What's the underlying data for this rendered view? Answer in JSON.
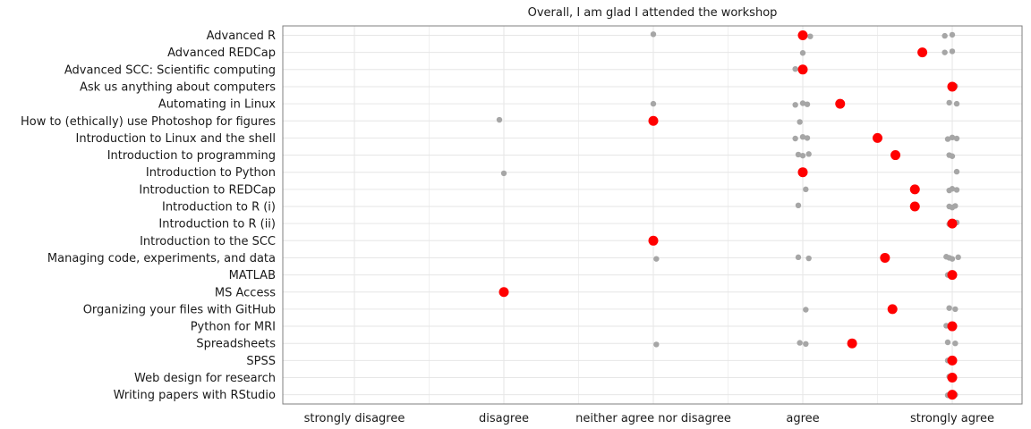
{
  "chart_data": {
    "type": "scatter",
    "title": "Overall, I am glad I attended the workshop",
    "x_categories": [
      "strongly disagree",
      "disagree",
      "neither agree nor disagree",
      "agree",
      "strongly agree"
    ],
    "x_scale": {
      "1": "strongly disagree",
      "2": "disagree",
      "3": "neither agree nor disagree",
      "4": "agree",
      "5": "strongly agree"
    },
    "grid": true,
    "colors": {
      "individual": "#a6a6a6",
      "mean": "#ff0000",
      "grid": "#e6e6e6",
      "border": "#7f7f7f"
    },
    "series_roles": [
      "individual responses (grey)",
      "mean response (red)"
    ],
    "rows": [
      {
        "label": "Advanced R",
        "mean": 4.0,
        "responses": [
          3.0,
          4.0,
          4.05,
          5.0,
          4.95
        ]
      },
      {
        "label": "Advanced REDCap",
        "mean": 4.8,
        "responses": [
          4.0,
          5.0,
          4.95
        ]
      },
      {
        "label": "Advanced SCC: Scientific computing",
        "mean": 4.0,
        "responses": [
          3.95,
          4.0
        ]
      },
      {
        "label": "Ask us anything about computers",
        "mean": 5.0,
        "responses": [
          5.0,
          5.02
        ]
      },
      {
        "label": "Automating in Linux",
        "mean": 4.25,
        "responses": [
          3.0,
          3.95,
          4.0,
          4.03,
          4.98,
          5.03
        ]
      },
      {
        "label": "How to (ethically) use Photoshop for figures",
        "mean": 3.0,
        "responses": [
          1.97,
          3.0,
          3.98
        ]
      },
      {
        "label": "Introduction to Linux and the shell",
        "mean": 4.5,
        "responses": [
          3.95,
          4.0,
          4.03,
          4.97,
          5.0,
          5.03
        ]
      },
      {
        "label": "Introduction to programming",
        "mean": 4.62,
        "responses": [
          3.97,
          4.0,
          4.04,
          4.98,
          5.0
        ]
      },
      {
        "label": "Introduction to Python",
        "mean": 4.0,
        "responses": [
          2.0,
          5.03
        ]
      },
      {
        "label": "Introduction to REDCap",
        "mean": 4.75,
        "responses": [
          4.02,
          4.98,
          5.0,
          5.03
        ]
      },
      {
        "label": "Introduction to R (i)",
        "mean": 4.75,
        "responses": [
          3.97,
          4.98,
          5.0,
          5.02
        ]
      },
      {
        "label": "Introduction to R (ii)",
        "mean": 5.0,
        "responses": [
          4.98,
          5.03
        ]
      },
      {
        "label": "Introduction to the SCC",
        "mean": 3.0,
        "responses": [
          3.0
        ]
      },
      {
        "label": "Managing code, experiments, and data",
        "mean": 4.55,
        "responses": [
          3.02,
          3.97,
          4.04,
          4.96,
          4.98,
          5.0,
          5.04
        ]
      },
      {
        "label": "MATLAB",
        "mean": 5.0,
        "responses": [
          4.97,
          5.0
        ]
      },
      {
        "label": "MS Access",
        "mean": 2.0,
        "responses": [
          2.0
        ]
      },
      {
        "label": "Organizing your files with GitHub",
        "mean": 4.6,
        "responses": [
          4.02,
          4.98,
          5.02
        ]
      },
      {
        "label": "Python for MRI",
        "mean": 5.0,
        "responses": [
          4.96,
          5.0
        ]
      },
      {
        "label": "Spreadsheets",
        "mean": 4.33,
        "responses": [
          3.02,
          3.98,
          4.02,
          4.97,
          5.02
        ]
      },
      {
        "label": "SPSS",
        "mean": 5.0,
        "responses": [
          4.97,
          5.0
        ]
      },
      {
        "label": "Web design for research",
        "mean": 5.0,
        "responses": [
          4.98,
          5.0
        ]
      },
      {
        "label": "Writing papers with RStudio",
        "mean": 5.0,
        "responses": [
          4.97,
          5.0,
          5.02
        ]
      }
    ]
  }
}
